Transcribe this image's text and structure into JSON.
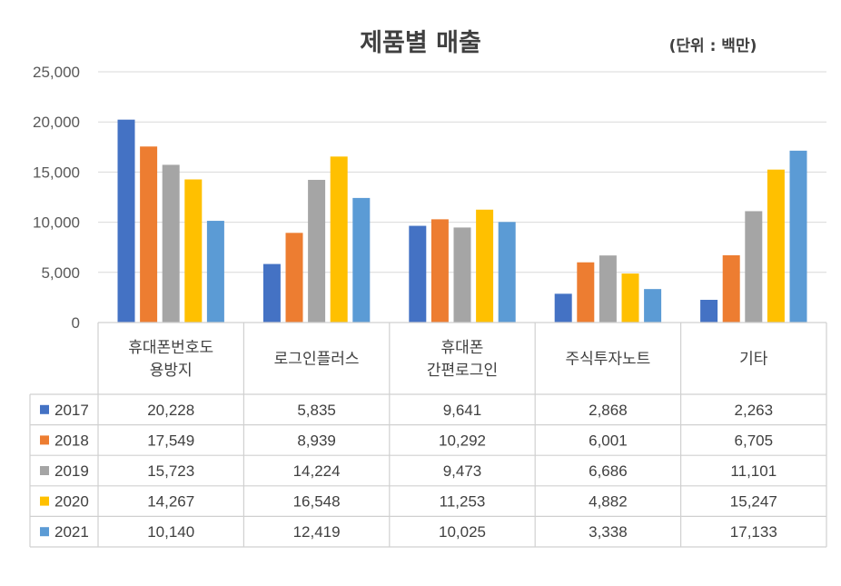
{
  "chart_data": {
    "type": "bar",
    "title": "제품별 매출",
    "unit_note": "(단위 : 백만)",
    "categories": [
      "휴대폰번호도 용방지",
      "로그인플러스",
      "휴대폰 간편로그인",
      "주식투자노트",
      "기타"
    ],
    "category_lines": [
      [
        "휴대폰번호도",
        "용방지"
      ],
      [
        "로그인플러스"
      ],
      [
        "휴대폰",
        "간편로그인"
      ],
      [
        "주식투자노트"
      ],
      [
        "기타"
      ]
    ],
    "ylim": [
      0,
      25000
    ],
    "yticks": [
      "0",
      "5,000",
      "10,000",
      "15,000",
      "20,000",
      "25,000"
    ],
    "grid": true,
    "legend_placement": "data-table",
    "series": [
      {
        "name": "2017",
        "color": "#4472C4",
        "values": [
          20228,
          5835,
          9641,
          2868,
          2263
        ],
        "labels": [
          "20,228",
          "5,835",
          "9,641",
          "2,868",
          "2,263"
        ]
      },
      {
        "name": "2018",
        "color": "#ED7D31",
        "values": [
          17549,
          8939,
          10292,
          6001,
          6705
        ],
        "labels": [
          "17,549",
          "8,939",
          "10,292",
          "6,001",
          "6,705"
        ]
      },
      {
        "name": "2019",
        "color": "#A5A5A5",
        "values": [
          15723,
          14224,
          9473,
          6686,
          11101
        ],
        "labels": [
          "15,723",
          "14,224",
          "9,473",
          "6,686",
          "11,101"
        ]
      },
      {
        "name": "2020",
        "color": "#FFC000",
        "values": [
          14267,
          16548,
          11253,
          4882,
          15247
        ],
        "labels": [
          "14,267",
          "16,548",
          "11,253",
          "4,882",
          "15,247"
        ]
      },
      {
        "name": "2021",
        "color": "#5B9BD5",
        "values": [
          10140,
          12419,
          10025,
          3338,
          17133
        ],
        "labels": [
          "10,140",
          "12,419",
          "10,025",
          "3,338",
          "17,133"
        ]
      }
    ]
  }
}
